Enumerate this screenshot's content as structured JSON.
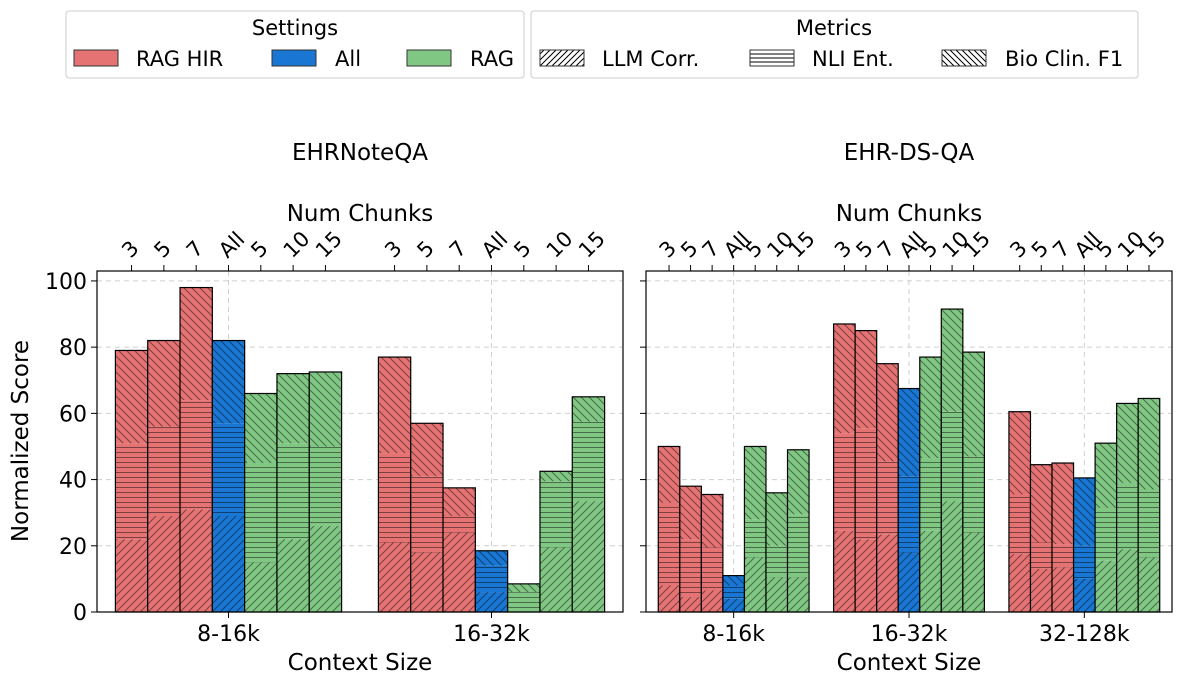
{
  "legend": {
    "settings_title": "Settings",
    "settings": [
      {
        "label": "RAG HIR",
        "color": "#e57373"
      },
      {
        "label": "All",
        "color": "#1976d2"
      },
      {
        "label": "RAG",
        "color": "#81c784"
      }
    ],
    "metrics_title": "Metrics",
    "metrics": [
      {
        "label": "LLM Corr.",
        "hatch": "diag-right"
      },
      {
        "label": "NLI Ent.",
        "hatch": "horizontal"
      },
      {
        "label": "Bio Clin. F1",
        "hatch": "diag-left"
      }
    ]
  },
  "chart_data": [
    {
      "type": "bar",
      "stacked": true,
      "title": "EHRNoteQA",
      "xlabel": "Context Size",
      "ylabel": "Normalized Score",
      "top_xlabel": "Num Chunks",
      "ylim": [
        0,
        103
      ],
      "yticks": [
        0,
        20,
        40,
        60,
        80,
        100
      ],
      "grid": true,
      "stack_order": [
        "LLM Corr.",
        "NLI Ent.",
        "Bio Clin. F1"
      ],
      "groups": [
        {
          "category": "8-16k",
          "bars": [
            {
              "chunks": "3",
              "setting": "RAG HIR",
              "llm": 22,
              "nli": 29,
              "bio": 28
            },
            {
              "chunks": "5",
              "setting": "RAG HIR",
              "llm": 29,
              "nli": 27,
              "bio": 26
            },
            {
              "chunks": "7",
              "setting": "RAG HIR",
              "llm": 31,
              "nli": 33,
              "bio": 34
            },
            {
              "chunks": "All",
              "setting": "All",
              "llm": 29,
              "nli": 28,
              "bio": 25
            },
            {
              "chunks": "5",
              "setting": "RAG",
              "llm": 15,
              "nli": 30,
              "bio": 21
            },
            {
              "chunks": "10",
              "setting": "RAG",
              "llm": 22,
              "nli": 29,
              "bio": 21
            },
            {
              "chunks": "15",
              "setting": "RAG",
              "llm": 26,
              "nli": 24,
              "bio": 22.5
            }
          ]
        },
        {
          "category": "16-32k",
          "bars": [
            {
              "chunks": "3",
              "setting": "RAG HIR",
              "llm": 21,
              "nli": 27,
              "bio": 29
            },
            {
              "chunks": "5",
              "setting": "RAG HIR",
              "llm": 18,
              "nli": 23,
              "bio": 16
            },
            {
              "chunks": "7",
              "setting": "RAG HIR",
              "llm": 24,
              "nli": 5,
              "bio": 8.5
            },
            {
              "chunks": "All",
              "setting": "All",
              "llm": 6,
              "nli": 8,
              "bio": 4.5
            },
            {
              "chunks": "5",
              "setting": "RAG",
              "llm": 0,
              "nli": 6,
              "bio": 2.5
            },
            {
              "chunks": "10",
              "setting": "RAG",
              "llm": 19.5,
              "nli": 20,
              "bio": 3
            },
            {
              "chunks": "15",
              "setting": "RAG",
              "llm": 33.5,
              "nli": 24,
              "bio": 7.5
            }
          ]
        }
      ]
    },
    {
      "type": "bar",
      "stacked": true,
      "title": "EHR-DS-QA",
      "xlabel": "Context Size",
      "ylabel": "",
      "top_xlabel": "Num Chunks",
      "ylim": [
        0,
        103
      ],
      "yticks": [
        0,
        20,
        40,
        60,
        80,
        100
      ],
      "grid": true,
      "stack_order": [
        "LLM Corr.",
        "NLI Ent.",
        "Bio Clin. F1"
      ],
      "groups": [
        {
          "category": "8-16k",
          "bars": [
            {
              "chunks": "3",
              "setting": "RAG HIR",
              "llm": 8,
              "nli": 25,
              "bio": 17
            },
            {
              "chunks": "5",
              "setting": "RAG HIR",
              "llm": 4.5,
              "nli": 17.5,
              "bio": 16
            },
            {
              "chunks": "7",
              "setting": "RAG HIR",
              "llm": 6.5,
              "nli": 13,
              "bio": 16
            },
            {
              "chunks": "All",
              "setting": "All",
              "llm": 4,
              "nli": 4,
              "bio": 3
            },
            {
              "chunks": "5",
              "setting": "RAG",
              "llm": 16.5,
              "nli": 11.5,
              "bio": 22
            },
            {
              "chunks": "10",
              "setting": "RAG",
              "llm": 10.5,
              "nli": 9.5,
              "bio": 16
            },
            {
              "chunks": "15",
              "setting": "RAG",
              "llm": 10.5,
              "nli": 19,
              "bio": 19.5
            }
          ]
        },
        {
          "category": "16-32k",
          "bars": [
            {
              "chunks": "3",
              "setting": "RAG HIR",
              "llm": 24.5,
              "nli": 29.5,
              "bio": 33
            },
            {
              "chunks": "5",
              "setting": "RAG HIR",
              "llm": 22,
              "nli": 33.5,
              "bio": 29.5
            },
            {
              "chunks": "7",
              "setting": "RAG HIR",
              "llm": 23.5,
              "nli": 22,
              "bio": 29.5
            },
            {
              "chunks": "All",
              "setting": "All",
              "llm": 18,
              "nli": 23,
              "bio": 26.5
            },
            {
              "chunks": "5",
              "setting": "RAG",
              "llm": 24.5,
              "nli": 22,
              "bio": 30.5
            },
            {
              "chunks": "10",
              "setting": "RAG",
              "llm": 33.5,
              "nli": 27,
              "bio": 31
            },
            {
              "chunks": "15",
              "setting": "RAG",
              "llm": 24,
              "nli": 23,
              "bio": 31.5
            }
          ]
        },
        {
          "category": "32-128k",
          "bars": [
            {
              "chunks": "3",
              "setting": "RAG HIR",
              "llm": 17.5,
              "nli": 18,
              "bio": 25
            },
            {
              "chunks": "5",
              "setting": "RAG HIR",
              "llm": 13,
              "nli": 8,
              "bio": 23.5
            },
            {
              "chunks": "7",
              "setting": "RAG HIR",
              "llm": 13.5,
              "nli": 7,
              "bio": 24.5
            },
            {
              "chunks": "All",
              "setting": "All",
              "llm": 10,
              "nli": 10,
              "bio": 20.5
            },
            {
              "chunks": "5",
              "setting": "RAG",
              "llm": 15.5,
              "nli": 16,
              "bio": 19.5
            },
            {
              "chunks": "10",
              "setting": "RAG",
              "llm": 19,
              "nli": 20,
              "bio": 24
            },
            {
              "chunks": "15",
              "setting": "RAG",
              "llm": 16.5,
              "nli": 20.5,
              "bio": 27.5
            }
          ]
        }
      ]
    }
  ]
}
